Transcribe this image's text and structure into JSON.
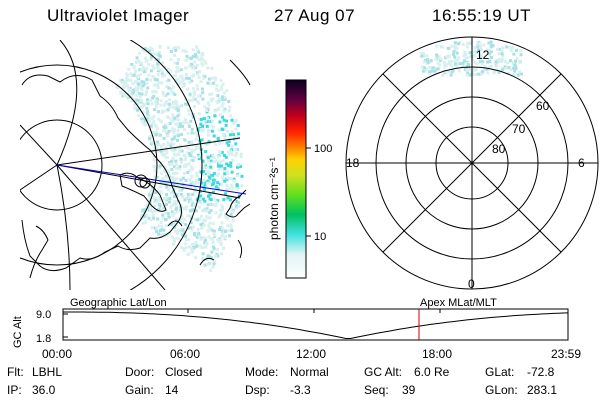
{
  "header": {
    "title": "Ultraviolet Imager",
    "date": "27 Aug 07",
    "time": "16:55:19 UT"
  },
  "colorbar": {
    "unit_label": "photon cm⁻²s⁻¹",
    "ticks": [
      "100",
      "10"
    ],
    "scale": "log"
  },
  "polar_plot": {
    "mlt_labels": {
      "top": "12",
      "left": "18",
      "right": "6",
      "bottom": "0"
    },
    "lat_labels": [
      "60",
      "70",
      "80"
    ]
  },
  "orbit_plot": {
    "left_title": "Geographic Lat/Lon",
    "right_title": "Apex  MLat/MLT",
    "ylabel": "GC Alt",
    "y_ticks": [
      "9.0",
      "1.8"
    ],
    "x_ticks": [
      "00:00",
      "06:00",
      "12:00",
      "18:00",
      "23:59"
    ],
    "current_time_marker": "16:55",
    "colors": {
      "orbit": "#000000",
      "marker": "#cc0000"
    }
  },
  "info": {
    "rows": [
      [
        "Flt:",
        "LBHL",
        "Door:",
        "Closed",
        "Mode:",
        "Normal",
        "GC Alt:",
        "6.0 Re",
        "GLat:",
        "-72.8"
      ],
      [
        "IP:",
        "36.0",
        "Gain:",
        "14",
        "Dsp:",
        "-3.3",
        "Seq:",
        "39",
        "GLon:",
        "283.1"
      ]
    ]
  },
  "colors": {
    "track": "#0000cc",
    "emission_light": "#d8f0f0",
    "emission_mid": "#a8e0e4",
    "emission_strong": "#40d8e0"
  }
}
